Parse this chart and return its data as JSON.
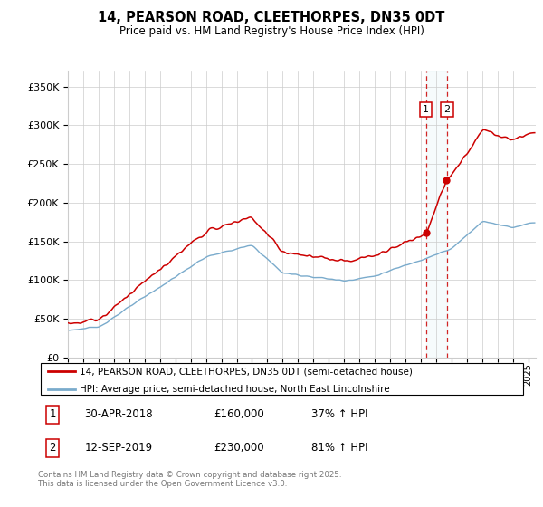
{
  "title": "14, PEARSON ROAD, CLEETHORPES, DN35 0DT",
  "subtitle": "Price paid vs. HM Land Registry's House Price Index (HPI)",
  "ylabel_ticks": [
    "£0",
    "£50K",
    "£100K",
    "£150K",
    "£200K",
    "£250K",
    "£300K",
    "£350K"
  ],
  "ylim": [
    0,
    370000
  ],
  "xlim_start": 1995,
  "xlim_end": 2025.5,
  "legend_line1": "14, PEARSON ROAD, CLEETHORPES, DN35 0DT (semi-detached house)",
  "legend_line2": "HPI: Average price, semi-detached house, North East Lincolnshire",
  "sale1_date": "30-APR-2018",
  "sale1_price": "£160,000",
  "sale1_hpi": "37% ↑ HPI",
  "sale2_date": "12-SEP-2019",
  "sale2_price": "£230,000",
  "sale2_hpi": "81% ↑ HPI",
  "footnote": "Contains HM Land Registry data © Crown copyright and database right 2025.\nThis data is licensed under the Open Government Licence v3.0.",
  "red_color": "#cc0000",
  "blue_color": "#7aabcc",
  "grid_color": "#cccccc",
  "sale1_x": 2018.33,
  "sale2_x": 2019.71
}
